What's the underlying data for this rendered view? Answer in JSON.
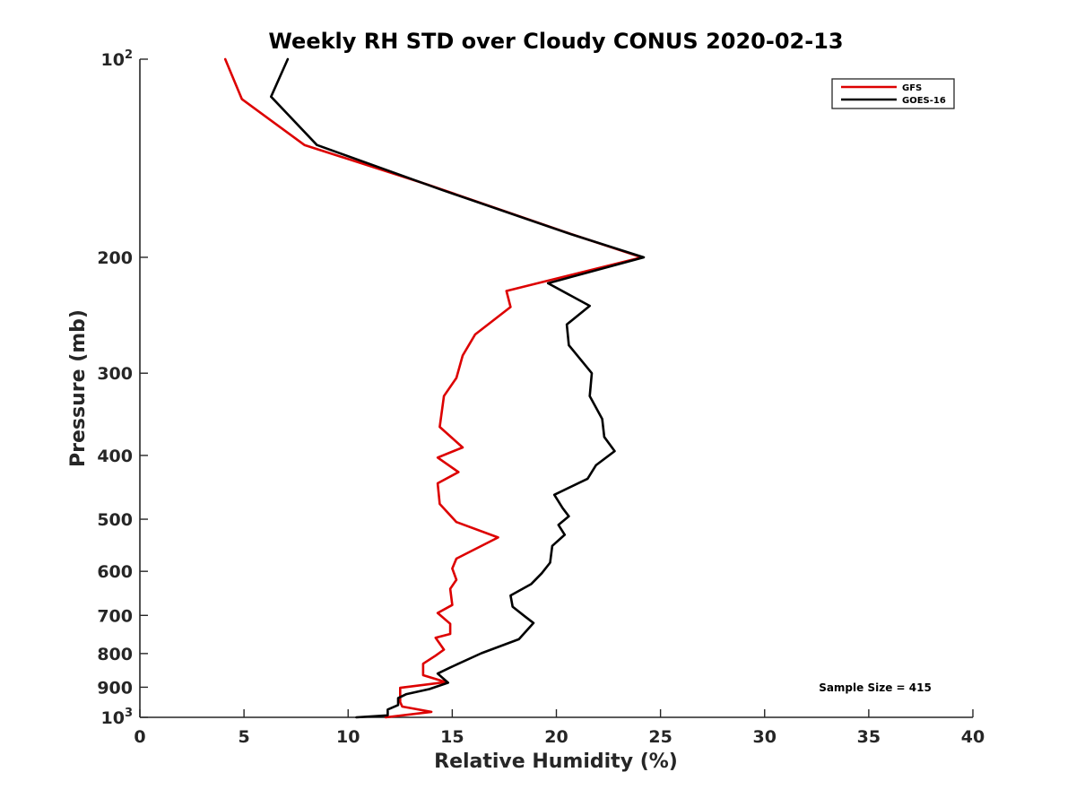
{
  "chart_data": {
    "type": "line",
    "title": "Weekly RH STD over Cloudy CONUS 2020-02-13",
    "xlabel": "Relative Humidity (%)",
    "ylabel": "Pressure (mb)",
    "xlim": [
      0,
      40
    ],
    "ylim": [
      100,
      1000
    ],
    "y_scale": "log",
    "y_reversed": true,
    "grid": false,
    "legend_position": "top-right",
    "x_ticks": [
      {
        "value": 0,
        "label": "0"
      },
      {
        "value": 5,
        "label": "5"
      },
      {
        "value": 10,
        "label": "10"
      },
      {
        "value": 15,
        "label": "15"
      },
      {
        "value": 20,
        "label": "20"
      },
      {
        "value": 25,
        "label": "25"
      },
      {
        "value": 30,
        "label": "30"
      },
      {
        "value": 35,
        "label": "35"
      },
      {
        "value": 40,
        "label": "40"
      }
    ],
    "y_ticks": [
      {
        "value": 100,
        "label": "10",
        "sup": "2"
      },
      {
        "value": 200,
        "label": "200"
      },
      {
        "value": 300,
        "label": "300"
      },
      {
        "value": 400,
        "label": "400"
      },
      {
        "value": 500,
        "label": "500"
      },
      {
        "value": 600,
        "label": "600"
      },
      {
        "value": 700,
        "label": "700"
      },
      {
        "value": 800,
        "label": "800"
      },
      {
        "value": 900,
        "label": "900"
      },
      {
        "value": 1000,
        "label": "10",
        "sup": "3"
      }
    ],
    "annotation": "Sample Size = 415",
    "series": [
      {
        "name": "GFS",
        "color": "#dd0000",
        "x": [
          4.1,
          4.9,
          7.9,
          13.8,
          20.4,
          24.1,
          17.6,
          17.8,
          16.1,
          15.5,
          15.2,
          14.6,
          14.4,
          15.5,
          14.3,
          15.3,
          14.3,
          14.4,
          15.2,
          17.2,
          15.2,
          15.0,
          15.2,
          14.9,
          15.0,
          14.3,
          14.9,
          14.9,
          14.2,
          14.6,
          14.2,
          13.6,
          13.6,
          14.7,
          12.5,
          12.5,
          12.6,
          14.0,
          11.8
        ],
        "y": [
          100,
          115,
          135,
          155,
          183,
          200,
          225,
          238,
          262,
          282,
          305,
          325,
          362,
          389,
          403,
          424,
          441,
          474,
          505,
          533,
          574,
          594,
          618,
          638,
          675,
          694,
          721,
          747,
          757,
          789,
          806,
          829,
          863,
          884,
          902,
          948,
          963,
          981,
          1000
        ]
      },
      {
        "name": "GOES-16",
        "color": "#000000",
        "x": [
          7.1,
          6.3,
          8.5,
          14.5,
          20.6,
          24.2,
          19.6,
          21.6,
          20.5,
          20.6,
          21.7,
          21.6,
          22.2,
          22.3,
          22.8,
          21.9,
          21.5,
          19.9,
          20.3,
          20.6,
          20.1,
          20.4,
          19.8,
          19.7,
          19.3,
          18.8,
          17.8,
          17.9,
          18.5,
          18.9,
          18.2,
          16.4,
          14.9,
          14.3,
          14.8,
          13.9,
          12.8,
          12.4,
          12.4,
          11.9,
          11.9,
          10.4
        ],
        "y": [
          100,
          114,
          135,
          158,
          184,
          200,
          219,
          237,
          253,
          272,
          300,
          325,
          352,
          375,
          394,
          414,
          434,
          459,
          481,
          495,
          510,
          528,
          549,
          582,
          604,
          627,
          653,
          679,
          703,
          719,
          761,
          799,
          840,
          858,
          886,
          906,
          922,
          935,
          958,
          973,
          993,
          1000
        ]
      }
    ]
  }
}
